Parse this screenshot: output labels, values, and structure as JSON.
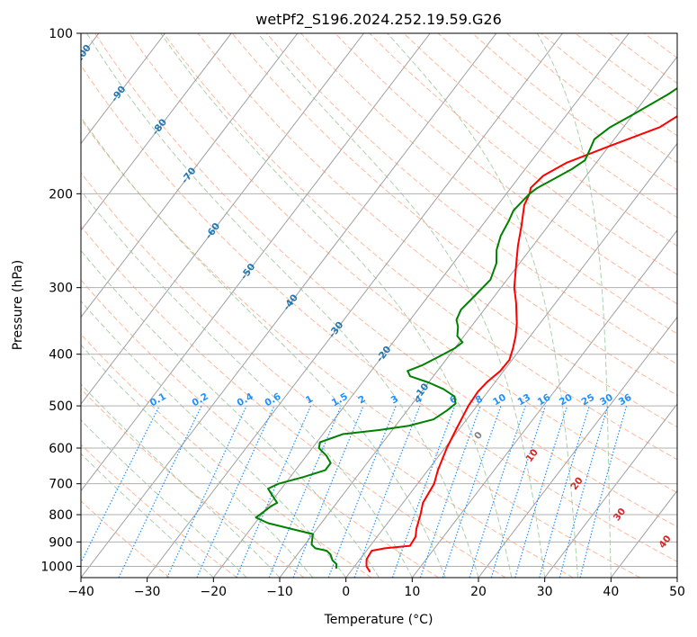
{
  "chart_data": {
    "type": "line",
    "title": "wetPf2_S196.2024.252.19.59.G26",
    "xlabel": "Temperature (°C)",
    "ylabel": "Pressure (hPa)",
    "xlim": [
      -40,
      50
    ],
    "ylim": [
      1050,
      100
    ],
    "yscale": "log",
    "x_ticks": [
      "−40",
      "−30",
      "−20",
      "−10",
      "0",
      "10",
      "20",
      "30",
      "40",
      "50"
    ],
    "y_ticks": [
      "100",
      "200",
      "300",
      "400",
      "500",
      "600",
      "700",
      "800",
      "900",
      "1000"
    ],
    "grid": true,
    "series": [
      {
        "color": "#ff0000",
        "points": [
          [
            3.0,
            1025
          ],
          [
            1.8,
            1000
          ],
          [
            1.0,
            970
          ],
          [
            0.8,
            935
          ],
          [
            2.5,
            925
          ],
          [
            6.0,
            915
          ],
          [
            5.8,
            880
          ],
          [
            5.0,
            850
          ],
          [
            4.0,
            800
          ],
          [
            3.0,
            760
          ],
          [
            2.5,
            700
          ],
          [
            1.5,
            660
          ],
          [
            0.3,
            600
          ],
          [
            -0.5,
            550
          ],
          [
            -1.3,
            500
          ],
          [
            -1.5,
            470
          ],
          [
            -1.2,
            450
          ],
          [
            -0.5,
            430
          ],
          [
            -0.4,
            410
          ],
          [
            -1.2,
            390
          ],
          [
            -2.2,
            370
          ],
          [
            -3.5,
            350
          ],
          [
            -6.0,
            320
          ],
          [
            -8.0,
            300
          ],
          [
            -10.5,
            270
          ],
          [
            -12.3,
            250
          ],
          [
            -14.0,
            230
          ],
          [
            -16.0,
            210
          ],
          [
            -16.5,
            200
          ],
          [
            -17.0,
            195
          ],
          [
            -16.5,
            185
          ],
          [
            -14.5,
            175
          ],
          [
            -10.0,
            163
          ],
          [
            -4.5,
            150
          ],
          [
            -2.5,
            140
          ],
          [
            -1.8,
            130
          ],
          [
            -2.0,
            120
          ],
          [
            -3.0,
            115
          ],
          [
            -5.0,
            110
          ],
          [
            -7.0,
            100
          ]
        ]
      },
      {
        "color": "#008000",
        "points": [
          [
            -2.5,
            1010
          ],
          [
            -3.0,
            990
          ],
          [
            -4.0,
            975
          ],
          [
            -5.0,
            950
          ],
          [
            -6.0,
            935
          ],
          [
            -8.0,
            925
          ],
          [
            -9.0,
            910
          ],
          [
            -9.5,
            890
          ],
          [
            -10.0,
            870
          ],
          [
            -13.0,
            855
          ],
          [
            -18.0,
            830
          ],
          [
            -20.5,
            810
          ],
          [
            -20.0,
            790
          ],
          [
            -19.5,
            770
          ],
          [
            -19.0,
            760
          ],
          [
            -20.0,
            745
          ],
          [
            -21.0,
            730
          ],
          [
            -22.0,
            715
          ],
          [
            -21.0,
            700
          ],
          [
            -18.0,
            680
          ],
          [
            -15.5,
            660
          ],
          [
            -15.5,
            640
          ],
          [
            -17.0,
            620
          ],
          [
            -19.0,
            600
          ],
          [
            -19.5,
            585
          ],
          [
            -17.0,
            565
          ],
          [
            -12.0,
            555
          ],
          [
            -8.0,
            545
          ],
          [
            -5.0,
            530
          ],
          [
            -4.0,
            510
          ],
          [
            -3.5,
            495
          ],
          [
            -4.5,
            480
          ],
          [
            -7.0,
            465
          ],
          [
            -10.0,
            452
          ],
          [
            -13.5,
            440
          ],
          [
            -14.5,
            430
          ],
          [
            -13.0,
            420
          ],
          [
            -11.5,
            405
          ],
          [
            -10.0,
            390
          ],
          [
            -9.5,
            380
          ],
          [
            -11.0,
            370
          ],
          [
            -12.0,
            355
          ],
          [
            -13.0,
            345
          ],
          [
            -13.5,
            330
          ],
          [
            -13.0,
            310
          ],
          [
            -12.5,
            290
          ],
          [
            -13.5,
            270
          ],
          [
            -15.0,
            255
          ],
          [
            -16.0,
            240
          ],
          [
            -16.5,
            225
          ],
          [
            -17.0,
            215
          ],
          [
            -16.5,
            200
          ],
          [
            -16.0,
            195
          ],
          [
            -15.0,
            190
          ],
          [
            -13.0,
            180
          ],
          [
            -12.0,
            173
          ],
          [
            -12.5,
            165
          ],
          [
            -13.0,
            158
          ],
          [
            -12.0,
            150
          ],
          [
            -10.0,
            142
          ],
          [
            -7.0,
            130
          ],
          [
            -5.0,
            120
          ],
          [
            -3.5,
            112
          ],
          [
            -2.0,
            106
          ],
          [
            -1.0,
            100
          ]
        ]
      }
    ],
    "isotherm_labels": [
      "-100",
      "-90",
      "-80",
      "-70",
      "-60",
      "-50",
      "-40",
      "-30",
      "-20",
      "-10"
    ],
    "mixing_ratio_labels": [
      "0.1",
      "0.2",
      "0.4",
      "0.6",
      "1",
      "1.5",
      "2",
      "3",
      "4",
      "6",
      "8",
      "10",
      "13",
      "16",
      "20",
      "25",
      "30",
      "36"
    ],
    "other_isotherm_labels": [
      "0",
      "10",
      "20",
      "30",
      "40"
    ],
    "colors": {
      "temperature": "#ff0000",
      "dewpoint": "#008000",
      "isotherm_label": "#1f77b4",
      "mixing_ratio": "#1e90ff",
      "warm_label": "#d62728",
      "zero_label": "#808080",
      "dry_adiabat": "#ffa07a",
      "moist_adiabat": "#90c090"
    }
  }
}
